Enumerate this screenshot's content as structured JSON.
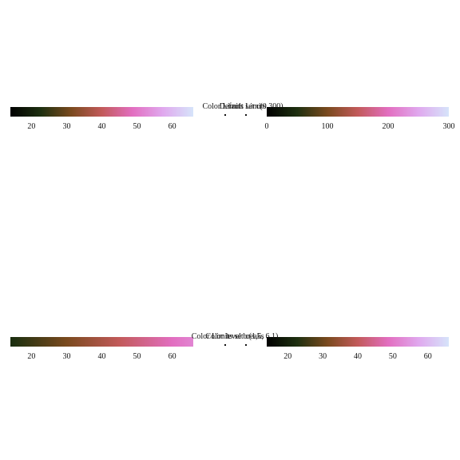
{
  "colors": {
    "stops": [
      "#000000",
      "#1e3010",
      "#7a4a1e",
      "#c25a5a",
      "#e26ec0",
      "#e0a8ee",
      "#d6e4fa"
    ]
  },
  "chart_data": [
    {
      "type": "colorbar",
      "title": "Default Limits",
      "range": [
        14,
        66
      ],
      "color_range": [
        14,
        66
      ],
      "ticks": [
        20,
        30,
        40,
        50,
        60
      ],
      "tick_labels": [
        "20",
        "30",
        "40",
        "50",
        "60"
      ]
    },
    {
      "type": "colorbar",
      "title": "Color Limits set c(0,300)",
      "range": [
        0,
        300
      ],
      "color_range": [
        0,
        300
      ],
      "ticks": [
        0,
        100,
        200,
        300
      ],
      "tick_labels": [
        "0",
        "100",
        "200",
        "300"
      ]
    },
    {
      "type": "colorbar",
      "title": "Color Limits set c(1,5, 6.1)",
      "range": [
        14,
        66
      ],
      "color_range": [
        0,
        90
      ],
      "ticks": [
        20,
        30,
        40,
        50,
        60
      ],
      "tick_labels": [
        "20",
        "30",
        "40",
        "50",
        "60"
      ]
    },
    {
      "type": "colorbar",
      "title": "Color level breaks",
      "range": [
        14,
        66
      ],
      "color_range": [
        14,
        66
      ],
      "ticks": [
        20,
        30,
        40,
        50,
        60
      ],
      "tick_labels": [
        "20",
        "30",
        "40",
        "50",
        "60"
      ]
    }
  ]
}
